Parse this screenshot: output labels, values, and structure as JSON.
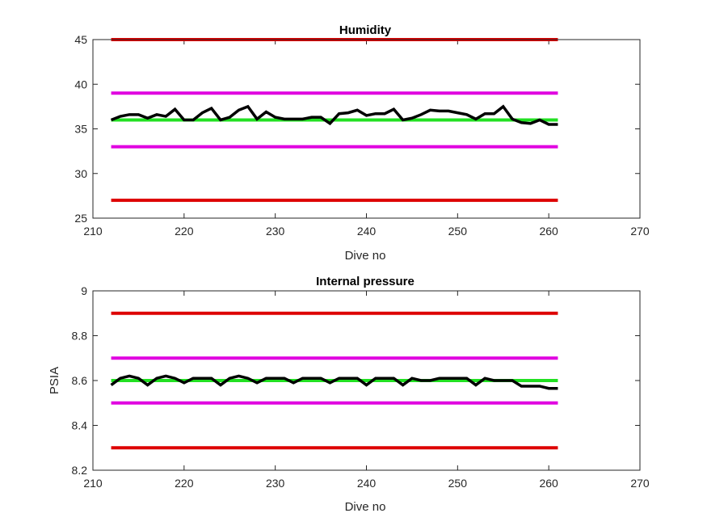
{
  "chart_data": [
    {
      "type": "line",
      "title": "Humidity",
      "xlabel": "Dive no",
      "ylabel": "",
      "xlim": [
        210,
        270
      ],
      "ylim": [
        25,
        45
      ],
      "xticks": [
        "210",
        "220",
        "230",
        "240",
        "250",
        "260",
        "270"
      ],
      "yticks": [
        "25",
        "30",
        "35",
        "40",
        "45"
      ],
      "grid": false,
      "series": [
        {
          "role": "data",
          "color": "#000000",
          "x": [
            212,
            213,
            214,
            215,
            216,
            217,
            218,
            219,
            220,
            221,
            222,
            223,
            224,
            225,
            226,
            227,
            228,
            229,
            230,
            231,
            232,
            233,
            234,
            235,
            236,
            237,
            238,
            239,
            240,
            241,
            242,
            243,
            244,
            245,
            246,
            247,
            248,
            249,
            250,
            251,
            252,
            253,
            254,
            255,
            256,
            257,
            258,
            259,
            260,
            261
          ],
          "y": [
            36.0,
            36.4,
            36.6,
            36.6,
            36.2,
            36.6,
            36.4,
            37.2,
            36.0,
            36.0,
            36.8,
            37.3,
            36.0,
            36.3,
            37.1,
            37.5,
            36.1,
            36.9,
            36.3,
            36.1,
            36.1,
            36.1,
            36.3,
            36.3,
            35.6,
            36.7,
            36.8,
            37.1,
            36.5,
            36.7,
            36.7,
            37.2,
            36.0,
            36.2,
            36.6,
            37.1,
            37.0,
            37.0,
            36.8,
            36.6,
            36.1,
            36.7,
            36.7,
            37.5,
            36.1,
            35.7,
            35.6,
            36.0,
            35.5,
            35.5
          ]
        },
        {
          "role": "mean",
          "color": "#22e022",
          "x": [
            212,
            261
          ],
          "y": [
            36,
            36
          ]
        },
        {
          "role": "upper-warning",
          "color": "#e000e0",
          "x": [
            212,
            261
          ],
          "y": [
            39,
            39
          ]
        },
        {
          "role": "lower-warning",
          "color": "#e000e0",
          "x": [
            212,
            261
          ],
          "y": [
            33,
            33
          ]
        },
        {
          "role": "upper-limit",
          "color": "#dd0000",
          "x": [
            212,
            261
          ],
          "y": [
            45,
            45
          ]
        },
        {
          "role": "lower-limit",
          "color": "#dd0000",
          "x": [
            212,
            261
          ],
          "y": [
            27,
            27
          ]
        }
      ]
    },
    {
      "type": "line",
      "title": "Internal pressure",
      "xlabel": "Dive no",
      "ylabel": "PSIA",
      "xlim": [
        210,
        270
      ],
      "ylim": [
        8.2,
        9
      ],
      "xticks": [
        "210",
        "220",
        "230",
        "240",
        "250",
        "260",
        "270"
      ],
      "yticks": [
        "8.2",
        "8.4",
        "8.6",
        "8.8",
        "9"
      ],
      "grid": false,
      "series": [
        {
          "role": "data",
          "color": "#000000",
          "x": [
            212,
            213,
            214,
            215,
            216,
            217,
            218,
            219,
            220,
            221,
            222,
            223,
            224,
            225,
            226,
            227,
            228,
            229,
            230,
            231,
            232,
            233,
            234,
            235,
            236,
            237,
            238,
            239,
            240,
            241,
            242,
            243,
            244,
            245,
            246,
            247,
            248,
            249,
            250,
            251,
            252,
            253,
            254,
            255,
            256,
            257,
            258,
            259,
            260,
            261
          ],
          "y": [
            8.58,
            8.61,
            8.62,
            8.61,
            8.58,
            8.61,
            8.62,
            8.61,
            8.59,
            8.61,
            8.61,
            8.61,
            8.58,
            8.61,
            8.62,
            8.61,
            8.59,
            8.61,
            8.61,
            8.61,
            8.59,
            8.61,
            8.61,
            8.61,
            8.59,
            8.61,
            8.61,
            8.61,
            8.58,
            8.61,
            8.61,
            8.61,
            8.58,
            8.61,
            8.6,
            8.6,
            8.61,
            8.61,
            8.61,
            8.61,
            8.58,
            8.61,
            8.6,
            8.6,
            8.6,
            8.575,
            8.575,
            8.575,
            8.565,
            8.565
          ]
        },
        {
          "role": "mean",
          "color": "#22e022",
          "x": [
            212,
            261
          ],
          "y": [
            8.6,
            8.6
          ]
        },
        {
          "role": "upper-warning",
          "color": "#e000e0",
          "x": [
            212,
            261
          ],
          "y": [
            8.7,
            8.7
          ]
        },
        {
          "role": "lower-warning",
          "color": "#e000e0",
          "x": [
            212,
            261
          ],
          "y": [
            8.5,
            8.5
          ]
        },
        {
          "role": "upper-limit",
          "color": "#dd0000",
          "x": [
            212,
            261
          ],
          "y": [
            8.9,
            8.9
          ]
        },
        {
          "role": "lower-limit",
          "color": "#dd0000",
          "x": [
            212,
            261
          ],
          "y": [
            8.3,
            8.3
          ]
        }
      ]
    }
  ]
}
